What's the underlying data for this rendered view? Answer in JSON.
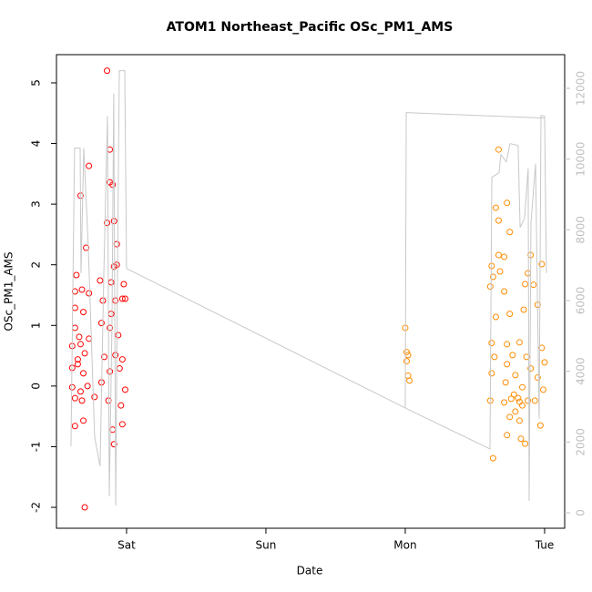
{
  "chart_data": {
    "type": "scatter",
    "title": "ATOM1 Northeast_Pacific OSc_PM1_AMS",
    "xlabel": "Date",
    "ylabel": "OSc_PM1_AMS",
    "xlim": [
      -0.503,
      3.144
    ],
    "xticks": [
      {
        "value": 0,
        "label": "Sat"
      },
      {
        "value": 1,
        "label": "Sun"
      },
      {
        "value": 2,
        "label": "Mon"
      },
      {
        "value": 3,
        "label": "Tue"
      }
    ],
    "ylim": [
      -2.345,
      5.465
    ],
    "yticks": [
      -2,
      -1,
      0,
      1,
      2,
      3,
      4,
      5
    ],
    "y2lim": [
      -438,
      12953
    ],
    "y2ticks": [
      0,
      2000,
      4000,
      6000,
      8000,
      10000,
      12000
    ],
    "y2color": "#bfbfbf",
    "series": [
      {
        "color": "#ff0000",
        "x": [
          -0.14,
          -0.27,
          -0.33,
          -0.12,
          -0.12,
          -0.1,
          -0.09,
          -0.14,
          -0.07,
          -0.29,
          -0.36,
          -0.09,
          -0.07,
          -0.37,
          -0.32,
          -0.19,
          -0.11,
          -0.02,
          -0.27,
          -0.03,
          -0.37,
          -0.31,
          -0.17,
          -0.08,
          -0.01,
          -0.11,
          -0.18,
          -0.37,
          -0.34,
          -0.27,
          -0.12,
          -0.06,
          -0.39,
          -0.33,
          -0.3,
          -0.16,
          -0.08,
          -0.03,
          -0.39,
          -0.35,
          -0.31,
          -0.12,
          -0.05,
          -0.39,
          -0.33,
          -0.23,
          -0.01,
          -0.37,
          -0.32,
          -0.13,
          -0.04,
          -0.31,
          -0.37,
          -0.03,
          -0.1,
          -0.09,
          -0.3,
          -0.28,
          -0.35,
          -0.18
        ],
        "values": [
          5.2,
          3.63,
          3.14,
          3.9,
          3.36,
          3.32,
          2.72,
          2.69,
          2.34,
          2.28,
          1.83,
          1.97,
          2.0,
          1.56,
          1.59,
          1.74,
          1.71,
          1.68,
          1.53,
          1.44,
          1.29,
          1.22,
          1.41,
          1.41,
          1.44,
          1.19,
          1.04,
          0.96,
          0.81,
          0.78,
          0.96,
          0.84,
          0.66,
          0.69,
          0.54,
          0.48,
          0.51,
          0.44,
          0.3,
          0.36,
          0.21,
          0.24,
          0.29,
          -0.02,
          -0.09,
          -0.18,
          -0.06,
          -0.2,
          -0.24,
          -0.24,
          -0.32,
          -0.57,
          -0.66,
          -0.63,
          -0.72,
          -0.96,
          -2.0,
          0.0,
          0.44,
          0.06
        ]
      },
      {
        "color": "#ff8c00",
        "x": [
          2.0,
          2.01,
          2.02,
          2.01,
          2.02,
          2.03,
          2.67,
          2.65,
          2.73,
          2.67,
          2.75,
          2.67,
          2.71,
          2.62,
          2.9,
          2.98,
          2.63,
          2.68,
          2.88,
          2.61,
          2.71,
          2.86,
          2.92,
          2.65,
          2.75,
          2.85,
          2.95,
          2.62,
          2.73,
          2.82,
          2.98,
          2.64,
          2.77,
          2.87,
          3.0,
          2.73,
          2.9,
          2.62,
          2.79,
          2.95,
          2.72,
          2.84,
          2.99,
          2.78,
          2.81,
          2.82,
          2.84,
          2.76,
          2.88,
          2.61,
          2.71,
          2.79,
          2.93,
          2.97,
          2.73,
          2.83,
          2.86,
          2.63,
          2.82,
          2.75
        ],
        "values": [
          0.96,
          0.56,
          0.51,
          0.41,
          0.17,
          0.09,
          3.9,
          2.94,
          3.02,
          2.73,
          2.54,
          2.16,
          2.13,
          1.98,
          2.16,
          2.01,
          1.8,
          1.89,
          1.86,
          1.64,
          1.56,
          1.68,
          1.67,
          1.14,
          1.19,
          1.26,
          1.34,
          0.71,
          0.69,
          0.72,
          0.63,
          0.48,
          0.51,
          0.48,
          0.39,
          0.36,
          0.29,
          0.21,
          0.18,
          0.14,
          0.06,
          -0.02,
          -0.06,
          -0.14,
          -0.2,
          -0.26,
          -0.32,
          -0.21,
          -0.24,
          -0.24,
          -0.27,
          -0.42,
          -0.24,
          -0.65,
          -0.81,
          -0.87,
          -0.95,
          -1.19,
          -0.57,
          -0.51
        ]
      },
      {
        "type": "line",
        "axis": "y2",
        "color": "#c8c8c8",
        "x": [
          -0.399,
          -0.373,
          -0.333,
          -0.327,
          -0.307,
          -0.275,
          -0.229,
          -0.19,
          -0.163,
          -0.137,
          -0.124,
          -0.105,
          -0.092,
          -0.078,
          -0.065,
          -0.052,
          -0.013,
          0,
          2.0,
          2.026,
          2.608,
          2.621,
          2.673,
          2.686,
          2.725,
          2.752,
          2.81,
          2.824,
          2.856,
          2.882,
          2.889,
          2.902,
          2.935,
          2.961,
          2.974,
          3.0,
          3.013,
          3.0,
          2.007,
          2.0
        ],
        "values": [
          1881,
          10309,
          10309,
          6778,
          10309,
          7552,
          2139,
          1314,
          6778,
          11211,
          464,
          5232,
          11856,
          206,
          6778,
          12500,
          12500,
          6907,
          2964,
          2912,
          1804,
          9485,
          9613,
          10129,
          9923,
          10438,
          10387,
          8067,
          8325,
          9742,
          335,
          8196,
          9871,
          2655,
          11237,
          11211,
          6778,
          11160,
          11314,
          2964
        ]
      }
    ]
  }
}
